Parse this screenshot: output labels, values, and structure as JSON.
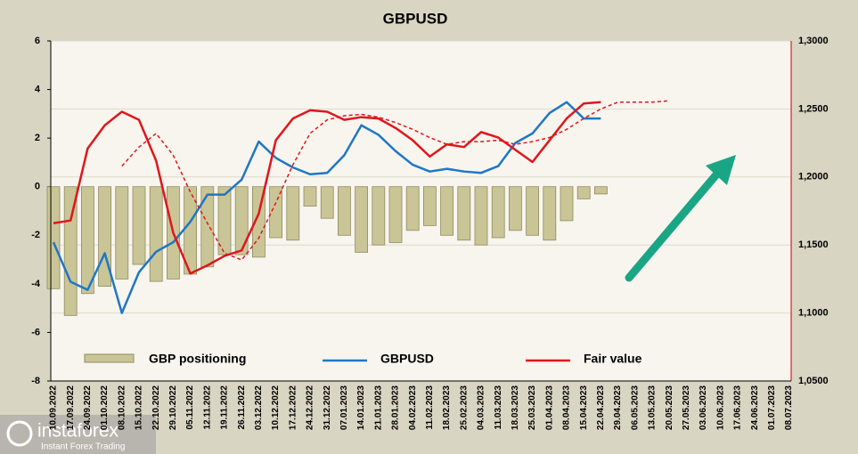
{
  "chart_data": {
    "type": "bar",
    "title": "GBPUSD",
    "categories": [
      "10.09.2022",
      "17.09.2022",
      "24.09.2022",
      "01.10.2022",
      "08.10.2022",
      "15.10.2022",
      "22.10.2022",
      "29.10.2022",
      "05.11.2022",
      "12.11.2022",
      "19.11.2022",
      "26.11.2022",
      "03.12.2022",
      "10.12.2022",
      "17.12.2022",
      "24.12.2022",
      "31.12.2022",
      "07.01.2023",
      "14.01.2023",
      "21.01.2023",
      "28.01.2023",
      "04.02.2023",
      "11.02.2023",
      "18.02.2023",
      "25.02.2023",
      "04.03.2023",
      "11.03.2023",
      "18.03.2023",
      "25.03.2023",
      "01.04.2023",
      "08.04.2023",
      "15.04.2023",
      "22.04.2023",
      "29.04.2023",
      "06.05.2023",
      "13.05.2023",
      "20.05.2023",
      "27.05.2023",
      "03.06.2023",
      "10.06.2023",
      "17.06.2023",
      "24.06.2023",
      "01.07.2023",
      "08.07.2023"
    ],
    "series": [
      {
        "name": "GBP positioning",
        "type": "bar",
        "axis": "y",
        "color": "#c9c596",
        "values": [
          -4.2,
          -5.3,
          -4.4,
          -4.1,
          -3.8,
          -3.2,
          -3.9,
          -3.8,
          -3.6,
          -3.3,
          -2.8,
          -2.8,
          -2.9,
          -2.1,
          -2.2,
          -0.8,
          -1.3,
          -2.0,
          -2.7,
          -2.4,
          -2.3,
          -1.8,
          -1.6,
          -2.0,
          -2.2,
          -2.4,
          -2.1,
          -1.8,
          -2.0,
          -2.2,
          -1.4,
          -0.5,
          -0.3,
          null,
          null,
          null,
          null,
          null,
          null,
          null,
          null,
          null,
          null,
          null
        ]
      },
      {
        "name": "GBPUSD",
        "type": "line",
        "axis": "y2",
        "color": "#1f77c4",
        "values": [
          1.152,
          1.123,
          1.117,
          1.144,
          1.1,
          1.13,
          1.145,
          1.152,
          1.167,
          1.187,
          1.187,
          1.198,
          1.226,
          1.214,
          1.207,
          1.202,
          1.203,
          1.216,
          1.238,
          1.231,
          1.219,
          1.209,
          1.204,
          1.206,
          1.204,
          1.203,
          1.208,
          1.225,
          1.232,
          1.247,
          1.255,
          1.243,
          1.243,
          null,
          null,
          null,
          null,
          null,
          null,
          null,
          null,
          null,
          null,
          null
        ]
      },
      {
        "name": "Fair value",
        "type": "line",
        "axis": "y2",
        "color": "#e0161c",
        "values": [
          1.166,
          1.168,
          1.221,
          1.238,
          1.248,
          1.242,
          1.212,
          1.159,
          1.129,
          1.135,
          1.142,
          1.146,
          1.173,
          1.227,
          1.243,
          1.249,
          1.248,
          1.242,
          1.244,
          1.243,
          1.236,
          1.227,
          1.215,
          1.224,
          1.222,
          1.233,
          1.229,
          1.22,
          1.211,
          1.227,
          1.243,
          1.254,
          1.255,
          null,
          null,
          null,
          null,
          null,
          null,
          null,
          null,
          null,
          null,
          null
        ]
      },
      {
        "type": "line",
        "dashed": true,
        "axis": "y2",
        "color": "#e0161c",
        "values": [
          null,
          null,
          null,
          null,
          1.208,
          1.222,
          1.232,
          1.216,
          1.189,
          1.166,
          1.144,
          1.139,
          1.155,
          1.181,
          1.209,
          1.232,
          1.242,
          1.245,
          1.246,
          1.244,
          1.24,
          1.235,
          1.229,
          1.224,
          1.226,
          1.226,
          1.227,
          1.224,
          1.226,
          1.229,
          1.235,
          1.243,
          1.25,
          1.255,
          1.255,
          1.255,
          1.256,
          null,
          null,
          null,
          null,
          null,
          null,
          null
        ]
      }
    ],
    "ylim": [
      -8,
      6
    ],
    "yticks": [
      -8,
      -6,
      -4,
      -2,
      0,
      2,
      4,
      6
    ],
    "y2lim": [
      1.05,
      1.3
    ],
    "y2ticks": [
      {
        "value": 1.05,
        "label": "1,0500"
      },
      {
        "value": 1.1,
        "label": "1,1000"
      },
      {
        "value": 1.15,
        "label": "1,1500"
      },
      {
        "value": 1.2,
        "label": "1,2000"
      },
      {
        "value": 1.25,
        "label": "1,2500"
      },
      {
        "value": 1.3,
        "label": "1,3000"
      }
    ],
    "grid": true,
    "watermark": {
      "brand": "instaforex",
      "tagline": "Instant Forex Trading"
    }
  }
}
